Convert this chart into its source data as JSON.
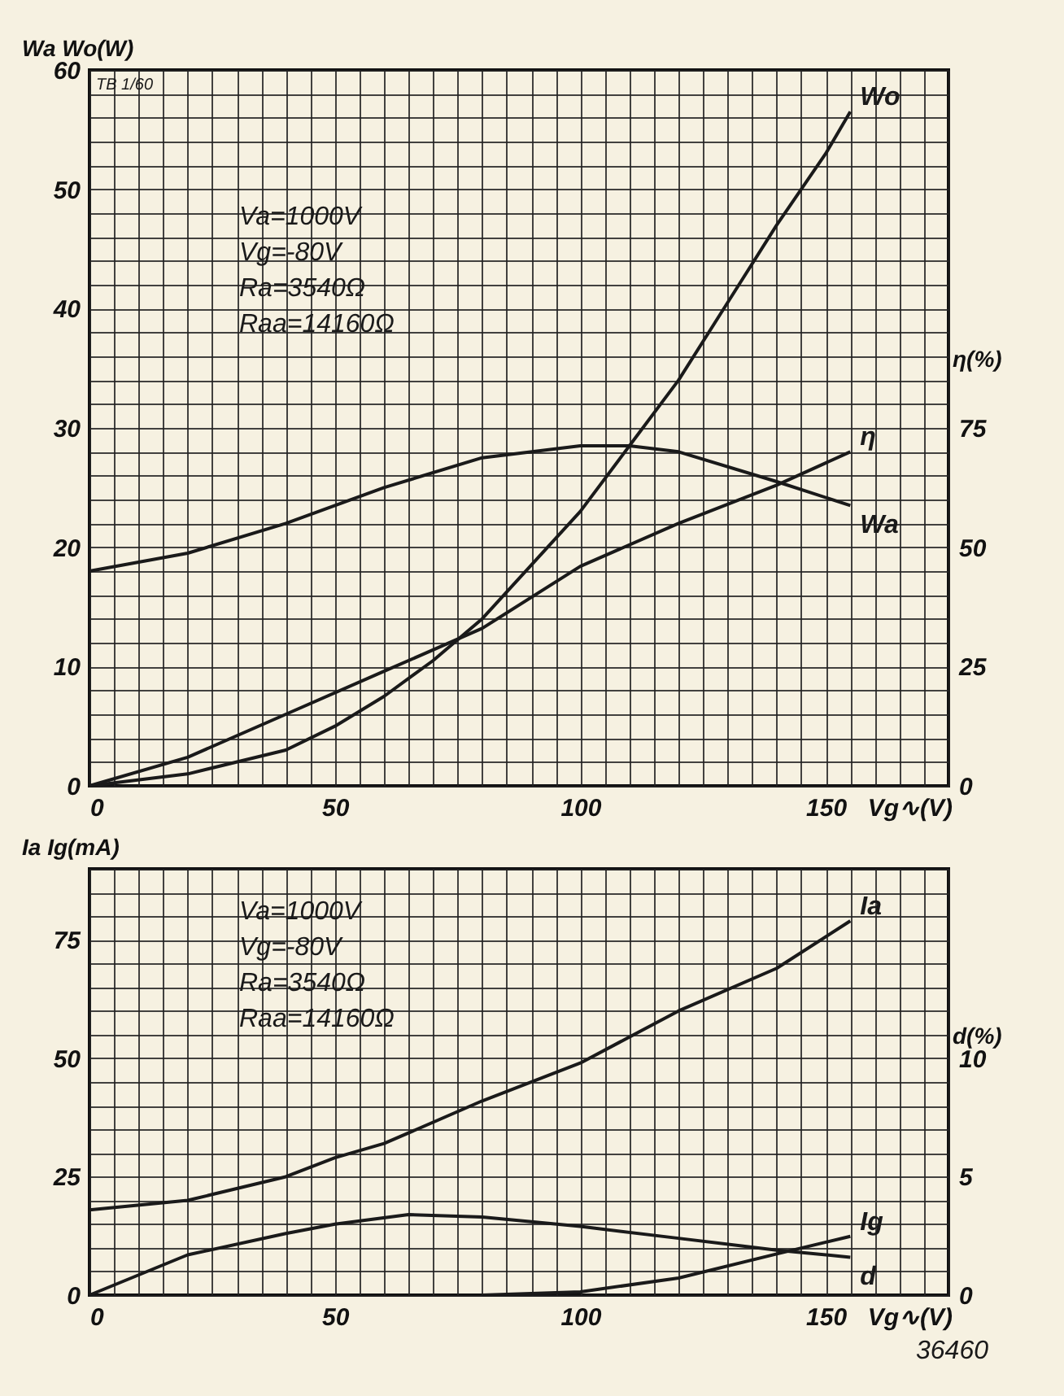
{
  "chart_data": [
    {
      "type": "line",
      "ylabel": "Wa Wo(W)",
      "xlabel": "Vg∿(V)",
      "y2label": "η(%)",
      "grid": true,
      "legend": false,
      "line_style": "solid",
      "marker": "none",
      "annotations": [
        "TB 1/60",
        "Va=1000V",
        "Vg=-80V",
        "Ra=3540Ω",
        "Raa=14160Ω"
      ],
      "xlim": [
        0,
        175
      ],
      "xticks": [
        0,
        {
          "value": 5,
          "label": null
        },
        {
          "value": 10,
          "label": null
        },
        {
          "value": 15,
          "label": null
        },
        {
          "value": 20,
          "label": null
        },
        {
          "value": 25,
          "label": null
        },
        {
          "value": 30,
          "label": null
        },
        {
          "value": 35,
          "label": null
        },
        {
          "value": 40,
          "label": null
        },
        {
          "value": 45,
          "label": null
        },
        50,
        {
          "value": 55,
          "label": null
        },
        {
          "value": 60,
          "label": null
        },
        {
          "value": 65,
          "label": null
        },
        {
          "value": 70,
          "label": null
        },
        {
          "value": 75,
          "label": null
        },
        {
          "value": 80,
          "label": null
        },
        {
          "value": 85,
          "label": null
        },
        {
          "value": 90,
          "label": null
        },
        {
          "value": 95,
          "label": null
        },
        100,
        {
          "value": 105,
          "label": null
        },
        {
          "value": 110,
          "label": null
        },
        {
          "value": 115,
          "label": null
        },
        {
          "value": 120,
          "label": null
        },
        {
          "value": 125,
          "label": null
        },
        {
          "value": 130,
          "label": null
        },
        {
          "value": 135,
          "label": null
        },
        {
          "value": 140,
          "label": null
        },
        {
          "value": 145,
          "label": null
        },
        150,
        {
          "value": 155,
          "label": null
        },
        {
          "value": 160,
          "label": null
        },
        {
          "value": 165,
          "label": null
        },
        {
          "value": 170,
          "label": null
        },
        {
          "value": 175,
          "label": null
        }
      ],
      "ylim": [
        0,
        60
      ],
      "yticks": [
        0,
        {
          "value": 2,
          "label": null
        },
        {
          "value": 4,
          "label": null
        },
        {
          "value": 6,
          "label": null
        },
        {
          "value": 8,
          "label": null
        },
        10,
        {
          "value": 12,
          "label": null
        },
        {
          "value": 14,
          "label": null
        },
        {
          "value": 16,
          "label": null
        },
        {
          "value": 18,
          "label": null
        },
        20,
        {
          "value": 22,
          "label": null
        },
        {
          "value": 24,
          "label": null
        },
        {
          "value": 26,
          "label": null
        },
        {
          "value": 28,
          "label": null
        },
        30,
        {
          "value": 32,
          "label": null
        },
        {
          "value": 34,
          "label": null
        },
        {
          "value": 36,
          "label": null
        },
        {
          "value": 38,
          "label": null
        },
        40,
        {
          "value": 42,
          "label": null
        },
        {
          "value": 44,
          "label": null
        },
        {
          "value": 46,
          "label": null
        },
        {
          "value": 48,
          "label": null
        },
        50,
        {
          "value": 52,
          "label": null
        },
        {
          "value": 54,
          "label": null
        },
        {
          "value": 56,
          "label": null
        },
        {
          "value": 58,
          "label": null
        },
        60
      ],
      "y2lim": [
        0,
        150
      ],
      "y2ticks": [
        0,
        25,
        50,
        75
      ],
      "series": [
        {
          "name": "Wo",
          "color": "#1a1a1a",
          "x": [
            0,
            20,
            40,
            50,
            60,
            70,
            80,
            90,
            100,
            110,
            120,
            130,
            140,
            150,
            155
          ],
          "values": [
            0,
            1,
            3,
            5,
            7.5,
            10.5,
            14,
            18.5,
            23,
            28.5,
            34,
            40.5,
            47,
            53,
            56.5
          ]
        },
        {
          "name": "Wa",
          "color": "#1a1a1a",
          "x": [
            0,
            20,
            40,
            60,
            80,
            100,
            110,
            120,
            140,
            155
          ],
          "values": [
            18,
            19.5,
            22,
            25,
            27.5,
            28.5,
            28.5,
            28,
            25.5,
            23.5
          ]
        },
        {
          "name": "η",
          "color": "#1a1a1a",
          "axis": "y2",
          "x": [
            0,
            20,
            40,
            60,
            80,
            100,
            120,
            140,
            155
          ],
          "values": [
            0,
            6,
            15,
            24,
            33,
            46,
            55,
            63,
            70
          ]
        }
      ]
    },
    {
      "type": "line",
      "ylabel": "Ia Ig(mA)",
      "xlabel": "Vg∿(V)",
      "y2label": "d(%)",
      "grid": true,
      "legend": false,
      "line_style": "solid",
      "marker": "none",
      "annotations": [
        "Va=1000V",
        "Vg=-80V",
        "Ra=3540Ω",
        "Raa=14160Ω",
        "36460"
      ],
      "xlim": [
        0,
        175
      ],
      "xticks": [
        0,
        {
          "value": 5,
          "label": null
        },
        {
          "value": 10,
          "label": null
        },
        {
          "value": 15,
          "label": null
        },
        {
          "value": 20,
          "label": null
        },
        {
          "value": 25,
          "label": null
        },
        {
          "value": 30,
          "label": null
        },
        {
          "value": 35,
          "label": null
        },
        {
          "value": 40,
          "label": null
        },
        {
          "value": 45,
          "label": null
        },
        50,
        {
          "value": 55,
          "label": null
        },
        {
          "value": 60,
          "label": null
        },
        {
          "value": 65,
          "label": null
        },
        {
          "value": 70,
          "label": null
        },
        {
          "value": 75,
          "label": null
        },
        {
          "value": 80,
          "label": null
        },
        {
          "value": 85,
          "label": null
        },
        {
          "value": 90,
          "label": null
        },
        {
          "value": 95,
          "label": null
        },
        100,
        {
          "value": 105,
          "label": null
        },
        {
          "value": 110,
          "label": null
        },
        {
          "value": 115,
          "label": null
        },
        {
          "value": 120,
          "label": null
        },
        {
          "value": 125,
          "label": null
        },
        {
          "value": 130,
          "label": null
        },
        {
          "value": 135,
          "label": null
        },
        {
          "value": 140,
          "label": null
        },
        {
          "value": 145,
          "label": null
        },
        150,
        {
          "value": 155,
          "label": null
        },
        {
          "value": 160,
          "label": null
        },
        {
          "value": 165,
          "label": null
        },
        {
          "value": 170,
          "label": null
        },
        {
          "value": 175,
          "label": null
        }
      ],
      "ylim": [
        0,
        90
      ],
      "yticks": [
        0,
        {
          "value": 5,
          "label": null
        },
        {
          "value": 10,
          "label": null
        },
        {
          "value": 15,
          "label": null
        },
        {
          "value": 20,
          "label": null
        },
        25,
        {
          "value": 30,
          "label": null
        },
        {
          "value": 35,
          "label": null
        },
        {
          "value": 40,
          "label": null
        },
        {
          "value": 45,
          "label": null
        },
        50,
        {
          "value": 55,
          "label": null
        },
        {
          "value": 60,
          "label": null
        },
        {
          "value": 65,
          "label": null
        },
        {
          "value": 70,
          "label": null
        },
        75,
        {
          "value": 80,
          "label": null
        },
        {
          "value": 85,
          "label": null
        },
        {
          "value": 90,
          "label": null
        }
      ],
      "y2lim": [
        0,
        18
      ],
      "y2ticks": [
        0,
        5,
        10
      ],
      "series": [
        {
          "name": "Ia",
          "color": "#1a1a1a",
          "x": [
            0,
            20,
            40,
            50,
            60,
            80,
            100,
            120,
            140,
            155
          ],
          "values": [
            18,
            20,
            25,
            29,
            32,
            41,
            49,
            60,
            69,
            79
          ]
        },
        {
          "name": "Ig",
          "color": "#1a1a1a",
          "x": [
            80,
            100,
            120,
            140,
            155
          ],
          "values": [
            0,
            0.7,
            3.6,
            8.7,
            12.4
          ]
        },
        {
          "name": "d",
          "color": "#1a1a1a",
          "axis": "y2",
          "x": [
            0,
            20,
            40,
            50,
            65,
            80,
            100,
            120,
            140,
            155
          ],
          "values": [
            0,
            1.7,
            2.6,
            3.0,
            3.4,
            3.3,
            2.9,
            2.4,
            1.9,
            1.6
          ]
        }
      ]
    }
  ]
}
